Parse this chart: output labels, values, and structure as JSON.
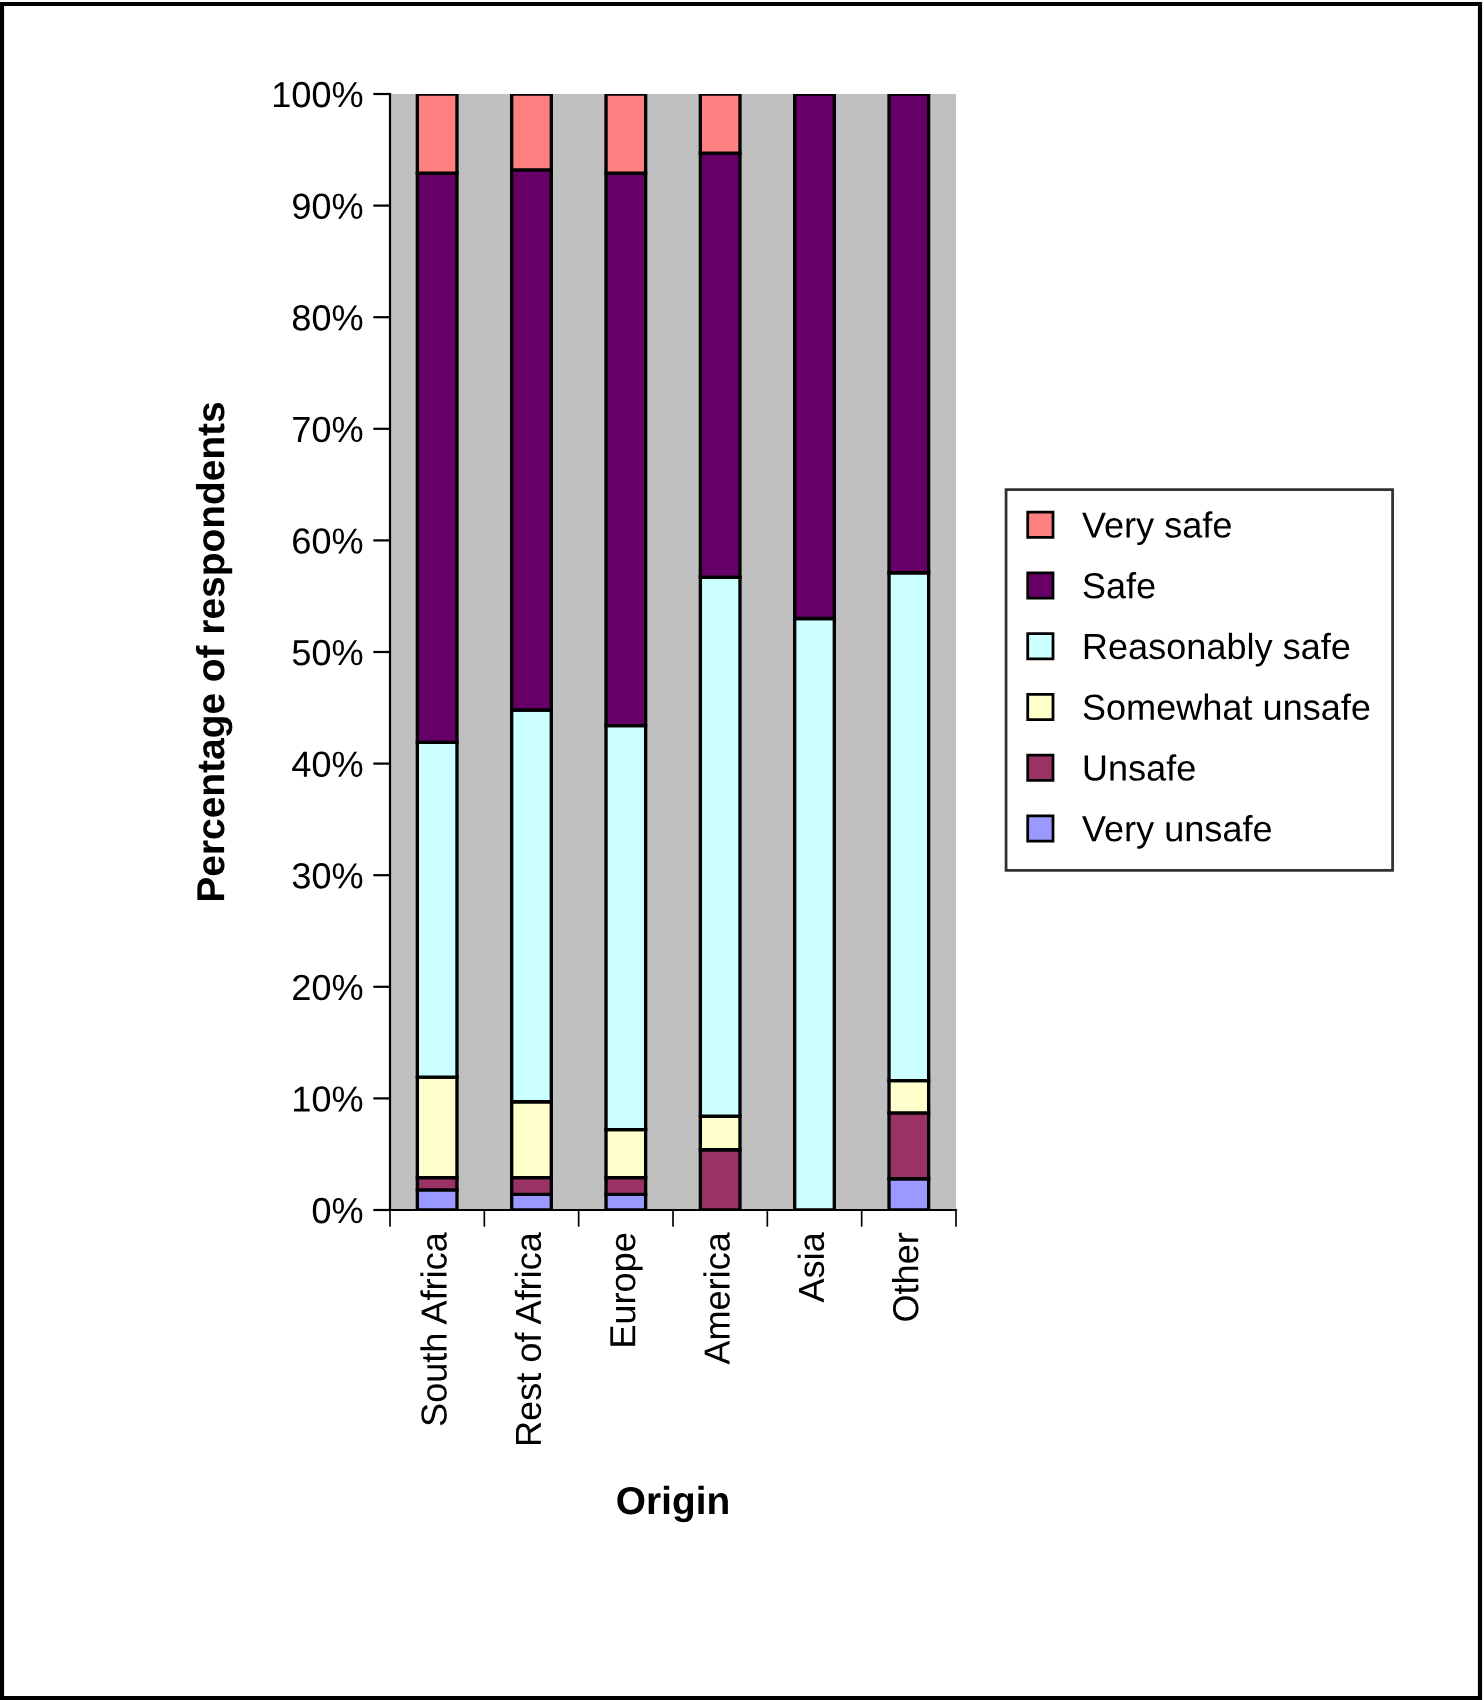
{
  "chart_data": {
    "type": "bar",
    "stacked": true,
    "xlabel": "Origin",
    "ylabel": "Percentage of respondents",
    "categories": [
      "South Africa",
      "Rest of Africa",
      "Europe",
      "America",
      "Asia",
      "Other"
    ],
    "series": [
      {
        "name": "Very unsafe",
        "color": "#9999ff",
        "values": [
          1.8,
          1.4,
          1.4,
          0,
          0,
          2.8
        ]
      },
      {
        "name": "Unsafe",
        "color": "#993366",
        "values": [
          1.1,
          1.5,
          1.5,
          5.4,
          0,
          5.9
        ]
      },
      {
        "name": "Somewhat unsafe",
        "color": "#ffffcc",
        "values": [
          9.0,
          6.8,
          4.3,
          3.0,
          0,
          2.9
        ]
      },
      {
        "name": "Reasonably safe",
        "color": "#ccffff",
        "values": [
          30.0,
          35.1,
          36.2,
          48.3,
          53.0,
          45.5
        ]
      },
      {
        "name": "Safe",
        "color": "#660066",
        "values": [
          51.0,
          48.4,
          49.5,
          38.0,
          47.0,
          42.9
        ]
      },
      {
        "name": "Very safe",
        "color": "#ff8080",
        "values": [
          7.1,
          6.8,
          7.1,
          5.3,
          0,
          0
        ]
      }
    ],
    "ylim": [
      0,
      100
    ],
    "yticks": [
      {
        "value": 0,
        "label": "0%"
      },
      {
        "value": 10,
        "label": "10%"
      },
      {
        "value": 20,
        "label": "20%"
      },
      {
        "value": 30,
        "label": "30%"
      },
      {
        "value": 40,
        "label": "40%"
      },
      {
        "value": 50,
        "label": "50%"
      },
      {
        "value": 60,
        "label": "60%"
      },
      {
        "value": 70,
        "label": "70%"
      },
      {
        "value": 80,
        "label": "80%"
      },
      {
        "value": 90,
        "label": "90%"
      },
      {
        "value": 100,
        "label": "100%"
      }
    ],
    "grid": false,
    "legend": "right"
  }
}
